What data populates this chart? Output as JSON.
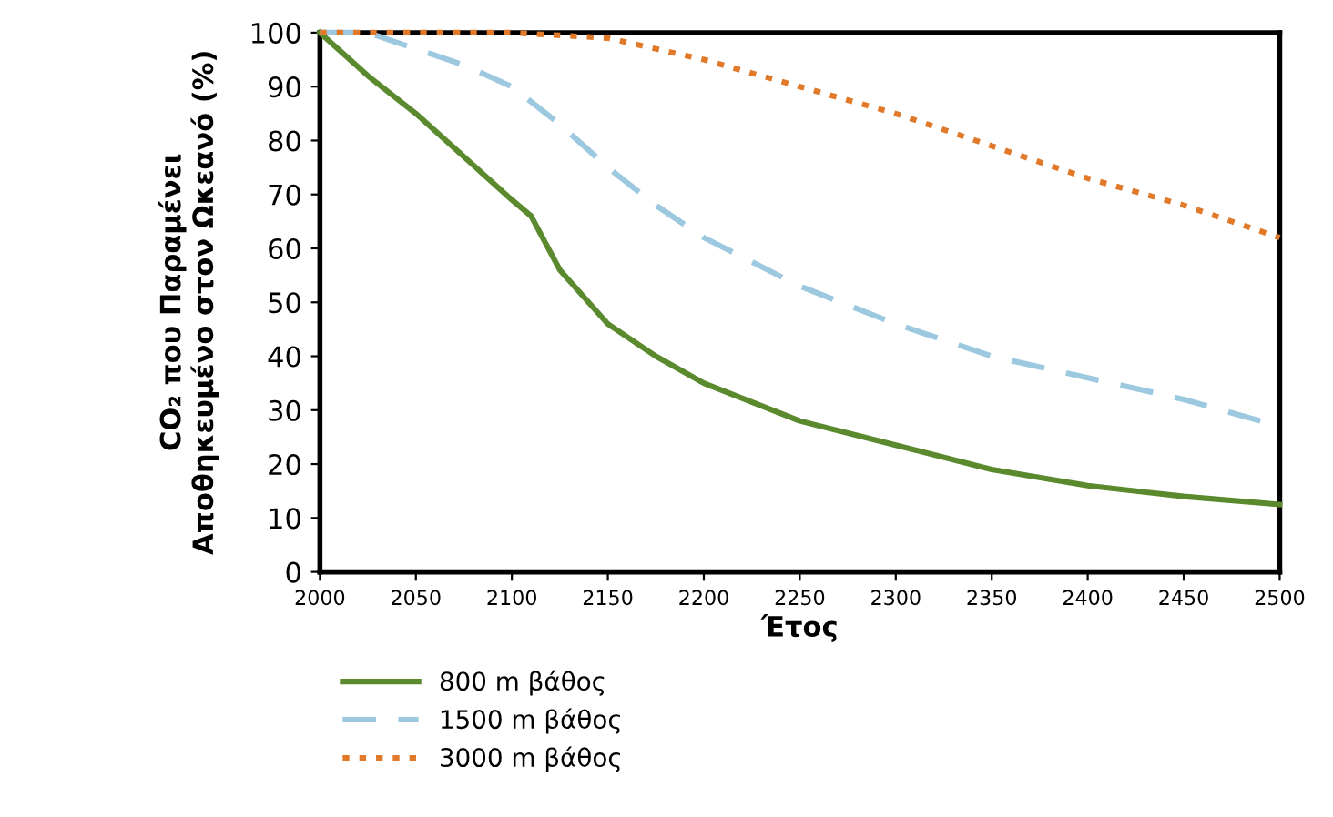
{
  "chart_data": {
    "type": "line",
    "xlabel": "Έτος",
    "ylabel": "CO₂ που Παραμένει\nΑποθηκευμένο στον Ωκεανό (%)",
    "xlim": [
      2000,
      2500
    ],
    "xticks": [
      2000,
      2050,
      2100,
      2150,
      2200,
      2250,
      2300,
      2350,
      2400,
      2450,
      2500
    ],
    "ylim": [
      0,
      100
    ],
    "yticks": [
      0,
      10,
      20,
      30,
      40,
      50,
      60,
      70,
      80,
      90,
      100
    ],
    "grid": false,
    "legend": "bottom",
    "marker": "none",
    "series": [
      {
        "name": "800 m βάθος",
        "color": "#5b8a2e",
        "line_style": "solid",
        "x": [
          2000,
          2025,
          2050,
          2075,
          2100,
          2110,
          2125,
          2150,
          2175,
          2200,
          2250,
          2300,
          2350,
          2400,
          2450,
          2500
        ],
        "values": [
          100,
          92,
          85,
          77,
          69,
          66,
          56,
          46,
          40,
          35,
          28,
          23.5,
          19,
          16,
          14,
          12.5
        ]
      },
      {
        "name": "1500 m βάθος",
        "color": "#9cc8e0",
        "line_style": "dashed",
        "x": [
          2000,
          2025,
          2050,
          2075,
          2100,
          2125,
          2150,
          2175,
          2200,
          2250,
          2300,
          2350,
          2400,
          2450,
          2500
        ],
        "values": [
          100,
          100,
          97,
          94,
          90,
          83,
          75,
          68,
          62,
          53,
          46,
          40,
          36,
          32,
          27
        ]
      },
      {
        "name": "3000 m βάθος",
        "color": "#e07a2a",
        "line_style": "dotted",
        "x": [
          2000,
          2050,
          2100,
          2150,
          2200,
          2250,
          2300,
          2350,
          2400,
          2450,
          2500
        ],
        "values": [
          100,
          100,
          100,
          99,
          95,
          90,
          85,
          79,
          73,
          68,
          62
        ]
      }
    ]
  }
}
